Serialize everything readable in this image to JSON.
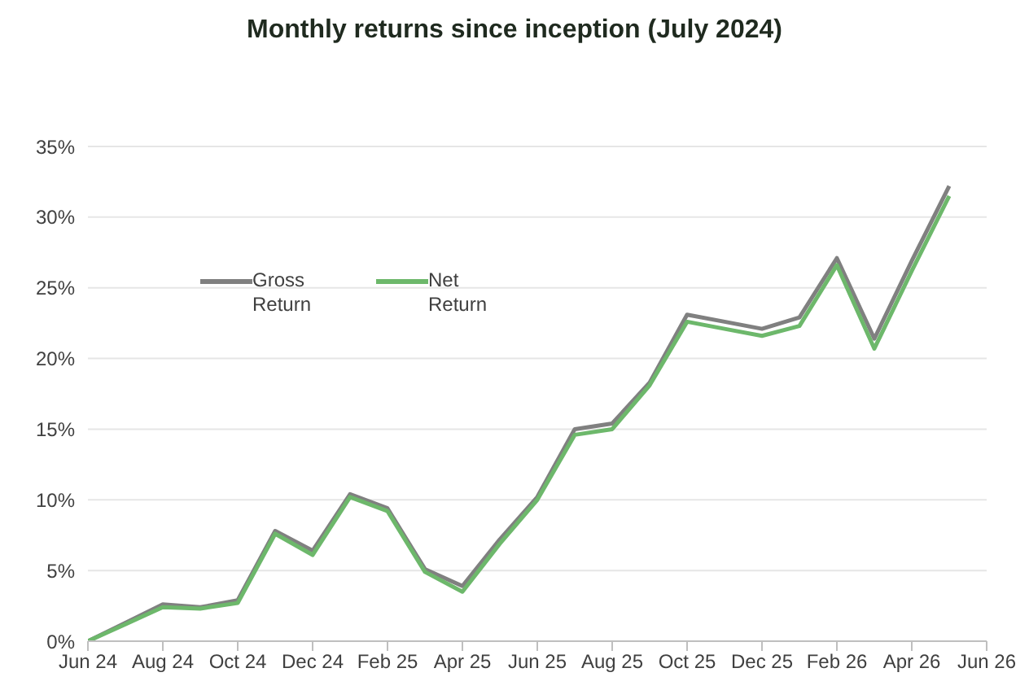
{
  "chart_data": {
    "type": "line",
    "title": "Monthly returns since inception (July 2024)",
    "x": [
      "2024-06",
      "2024-07",
      "2024-08",
      "2024-09",
      "2024-10",
      "2024-11",
      "2024-12",
      "2025-01",
      "2025-02",
      "2025-03",
      "2025-04",
      "2025-05",
      "2025-06",
      "2025-07",
      "2025-08",
      "2025-09",
      "2025-10",
      "2025-11",
      "2025-12",
      "2026-01",
      "2026-02",
      "2026-03",
      "2026-04",
      "2026-05"
    ],
    "series": [
      {
        "name": "Gross Return",
        "color": "#808080",
        "values": [
          0,
          1.3,
          2.6,
          2.4,
          2.9,
          7.8,
          6.4,
          10.4,
          9.4,
          5.1,
          3.9,
          7.2,
          10.2,
          15.0,
          15.4,
          18.3,
          23.1,
          22.6,
          22.1,
          22.9,
          27.1,
          21.4,
          26.9,
          32.2
        ]
      },
      {
        "name": "Net Return",
        "color": "#6db86b",
        "values": [
          0,
          1.2,
          2.4,
          2.3,
          2.7,
          7.6,
          6.1,
          10.2,
          9.2,
          4.9,
          3.5,
          6.9,
          10.0,
          14.6,
          15.0,
          18.1,
          22.6,
          22.1,
          21.6,
          22.3,
          26.6,
          20.7,
          26.2,
          31.5
        ]
      }
    ],
    "xlim": [
      "2024-06",
      "2026-06"
    ],
    "xticks": [
      {
        "value": "2024-06",
        "label": "Jun 24"
      },
      {
        "value": "2024-08",
        "label": "Aug 24"
      },
      {
        "value": "2024-10",
        "label": "Oct 24"
      },
      {
        "value": "2024-12",
        "label": "Dec 24"
      },
      {
        "value": "2025-02",
        "label": "Feb 25"
      },
      {
        "value": "2025-04",
        "label": "Apr 25"
      },
      {
        "value": "2025-06",
        "label": "Jun 25"
      },
      {
        "value": "2025-08",
        "label": "Aug 25"
      },
      {
        "value": "2025-10",
        "label": "Oct 25"
      },
      {
        "value": "2025-12",
        "label": "Dec 25"
      },
      {
        "value": "2026-02",
        "label": "Feb 26"
      },
      {
        "value": "2026-04",
        "label": "Apr 26"
      },
      {
        "value": "2026-06",
        "label": "Jun 26"
      }
    ],
    "ylim": [
      0,
      35
    ],
    "yticks": [
      {
        "value": 0,
        "label": "0%"
      },
      {
        "value": 5,
        "label": "5%"
      },
      {
        "value": 10,
        "label": "10%"
      },
      {
        "value": 15,
        "label": "15%"
      },
      {
        "value": 20,
        "label": "20%"
      },
      {
        "value": 25,
        "label": "25%"
      },
      {
        "value": 30,
        "label": "30%"
      },
      {
        "value": 35,
        "label": "35%"
      }
    ],
    "grid": "y",
    "legend": "top left",
    "marker": "none",
    "line_style": "solid"
  }
}
